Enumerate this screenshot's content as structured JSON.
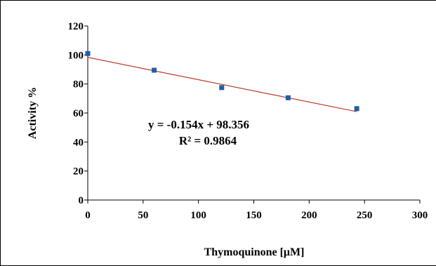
{
  "chart_data": {
    "type": "scatter",
    "xlabel": "Thymoquinone  [μM]",
    "ylabel": "Activity  %",
    "xlim": [
      0,
      300
    ],
    "ylim": [
      0,
      120
    ],
    "x_ticks": [
      0,
      50,
      100,
      150,
      200,
      250,
      300
    ],
    "y_ticks": [
      0,
      20,
      40,
      60,
      80,
      100,
      120
    ],
    "grid": false,
    "series": [
      {
        "x": [
          0,
          60,
          121,
          181,
          243
        ],
        "y": [
          101,
          89.5,
          77.5,
          70.5,
          63
        ],
        "marker": "square",
        "color": "#1f5fa8"
      }
    ],
    "trendline": {
      "type": "linear",
      "slope": -0.154,
      "intercept": 98.356,
      "x_range": [
        0,
        243
      ],
      "color": "#c0392b"
    },
    "annotations": {
      "equation": "y = -0.154x + 98.356",
      "r_squared": "R² = 0.9864"
    }
  }
}
